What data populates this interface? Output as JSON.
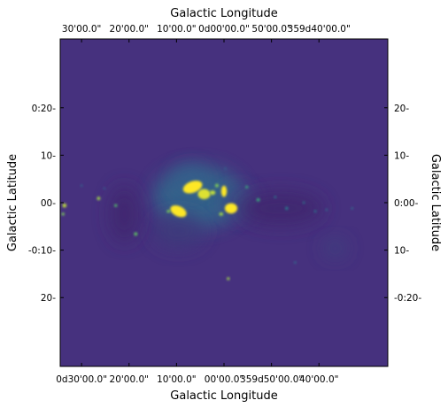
{
  "chart_data": {
    "type": "heatmap",
    "projection": "galactic sky image",
    "colormap": "viridis",
    "grid": false,
    "colorbar": false,
    "colors": {
      "background": "#46317e",
      "low": "#440154",
      "mid": "#21908d",
      "high": "#fde725"
    },
    "axes": {
      "top": {
        "label": "Galactic Longitude",
        "ticks": [
          "30'00.0\"",
          "20'00.0\"",
          "10'00.0\"",
          "0d00'00.0\"",
          "50'00.0\"",
          "359d40'00.0\""
        ],
        "tick_values_deg": [
          0.5,
          0.3333,
          0.1667,
          0.0,
          -0.1667,
          -0.3333
        ]
      },
      "bottom": {
        "label": "Galactic Longitude",
        "ticks": [
          "0d30'00.0\"",
          "20'00.0\"",
          "10'00.0\"",
          "00'00.0\"",
          "359d50'00.0\"",
          "40'00.0\""
        ],
        "tick_values_deg": [
          0.5,
          0.3333,
          0.1667,
          0.0,
          -0.1667,
          -0.3333
        ]
      },
      "left": {
        "label": "Galactic Latitude",
        "ticks": [
          "0:20-",
          "10-",
          "00-",
          "-0:10-",
          "20-"
        ],
        "tick_values_deg": [
          0.3333,
          0.1667,
          0.0,
          -0.1667,
          -0.3333
        ]
      },
      "right": {
        "label": "Galactic Latitude",
        "ticks": [
          "20-",
          "10-",
          "0:00-",
          "10-",
          "-0:20-"
        ],
        "tick_values_deg": [
          0.3333,
          0.1667,
          0.0,
          -0.1667,
          -0.3333
        ]
      },
      "xlim_deg": [
        0.575,
        -0.575
      ],
      "ylim_deg": [
        -0.575,
        0.575
      ]
    },
    "features": [
      {
        "type": "blob",
        "l": 0.16,
        "b": -0.03,
        "rx": 0.03,
        "ry": 0.018,
        "rot": -25,
        "intensity": 1.0
      },
      {
        "type": "blob",
        "l": 0.11,
        "b": 0.055,
        "rx": 0.035,
        "ry": 0.02,
        "rot": 20,
        "intensity": 1.0
      },
      {
        "type": "blob",
        "l": 0.07,
        "b": 0.03,
        "rx": 0.022,
        "ry": 0.018,
        "rot": 0,
        "intensity": 0.95
      },
      {
        "type": "blob",
        "l": 0.04,
        "b": 0.035,
        "rx": 0.01,
        "ry": 0.008,
        "rot": 0,
        "intensity": 0.9
      },
      {
        "type": "blob",
        "l": 0.0,
        "b": 0.04,
        "rx": 0.01,
        "ry": 0.02,
        "rot": 0,
        "intensity": 1.0
      },
      {
        "type": "blob",
        "l": -0.025,
        "b": -0.02,
        "rx": 0.022,
        "ry": 0.018,
        "rot": 0,
        "intensity": 1.0
      },
      {
        "type": "blob",
        "l": 0.01,
        "b": -0.04,
        "rx": 0.007,
        "ry": 0.006,
        "rot": 0,
        "intensity": 0.85
      },
      {
        "type": "blob",
        "l": 0.025,
        "b": 0.06,
        "rx": 0.006,
        "ry": 0.006,
        "rot": 0,
        "intensity": 0.8
      },
      {
        "type": "blob",
        "l": 0.195,
        "b": -0.03,
        "rx": 0.006,
        "ry": 0.005,
        "rot": 0,
        "intensity": 0.8
      },
      {
        "type": "diffuse",
        "l": 0.09,
        "b": 0.02,
        "rx": 0.16,
        "ry": 0.11,
        "intensity": 0.35
      },
      {
        "type": "diffuse",
        "l": 0.12,
        "b": 0.08,
        "rx": 0.06,
        "ry": 0.05,
        "intensity": 0.3
      },
      {
        "type": "diffuse",
        "l": 0.16,
        "b": -0.1,
        "rx": 0.09,
        "ry": 0.06,
        "intensity": 0.18
      },
      {
        "type": "diffuse",
        "l": -0.05,
        "b": 0.0,
        "rx": 0.06,
        "ry": 0.05,
        "intensity": 0.22
      },
      {
        "type": "diffuse",
        "l": -0.2,
        "b": -0.02,
        "rx": 0.15,
        "ry": 0.06,
        "intensity": 0.12
      },
      {
        "type": "diffuse",
        "l": 0.35,
        "b": -0.04,
        "rx": 0.05,
        "ry": 0.1,
        "intensity": 0.12
      },
      {
        "type": "diffuse",
        "l": -0.39,
        "b": -0.16,
        "rx": 0.04,
        "ry": 0.03,
        "intensity": 0.2
      },
      {
        "type": "point",
        "l": 0.56,
        "b": -0.01,
        "r": 0.007,
        "intensity": 0.9
      },
      {
        "type": "point",
        "l": 0.565,
        "b": -0.04,
        "r": 0.005,
        "intensity": 0.8
      },
      {
        "type": "point",
        "l": 0.44,
        "b": 0.015,
        "r": 0.006,
        "intensity": 0.85
      },
      {
        "type": "point",
        "l": 0.38,
        "b": -0.01,
        "r": 0.005,
        "intensity": 0.7
      },
      {
        "type": "point",
        "l": 0.31,
        "b": -0.11,
        "r": 0.006,
        "intensity": 0.75
      },
      {
        "type": "point",
        "l": -0.015,
        "b": -0.267,
        "r": 0.005,
        "intensity": 0.85
      },
      {
        "type": "point",
        "l": -0.08,
        "b": 0.055,
        "r": 0.005,
        "intensity": 0.6
      },
      {
        "type": "point",
        "l": -0.12,
        "b": 0.01,
        "r": 0.006,
        "intensity": 0.6
      },
      {
        "type": "point",
        "l": -0.18,
        "b": 0.02,
        "r": 0.004,
        "intensity": 0.4
      },
      {
        "type": "point",
        "l": -0.22,
        "b": -0.02,
        "r": 0.005,
        "intensity": 0.45
      },
      {
        "type": "point",
        "l": -0.28,
        "b": 0.0,
        "r": 0.004,
        "intensity": 0.4
      },
      {
        "type": "point",
        "l": -0.32,
        "b": -0.03,
        "r": 0.004,
        "intensity": 0.4
      },
      {
        "type": "point",
        "l": -0.36,
        "b": -0.025,
        "r": 0.004,
        "intensity": 0.35
      },
      {
        "type": "point",
        "l": -0.45,
        "b": -0.02,
        "r": 0.004,
        "intensity": 0.35
      },
      {
        "type": "point",
        "l": -0.25,
        "b": -0.21,
        "r": 0.004,
        "intensity": 0.35
      },
      {
        "type": "point",
        "l": 0.08,
        "b": 0.1,
        "r": 0.004,
        "intensity": 0.3
      },
      {
        "type": "point",
        "l": -0.005,
        "b": 0.12,
        "r": 0.004,
        "intensity": 0.3
      },
      {
        "type": "point",
        "l": 0.42,
        "b": 0.05,
        "r": 0.004,
        "intensity": 0.3
      },
      {
        "type": "point",
        "l": 0.5,
        "b": 0.06,
        "r": 0.004,
        "intensity": 0.3
      }
    ]
  }
}
